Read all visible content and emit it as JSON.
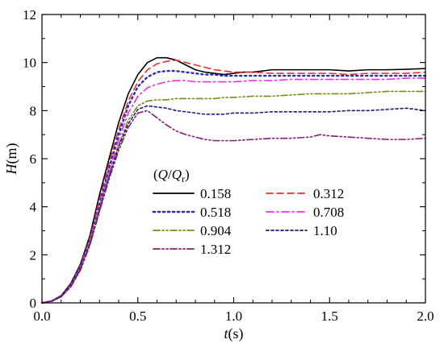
{
  "chart_data": {
    "type": "line",
    "xlabel": {
      "main": "t",
      "unit": "(s)"
    },
    "ylabel": {
      "main": "H",
      "unit": "(m)"
    },
    "xlim": [
      0,
      2.0
    ],
    "ylim": [
      0,
      12
    ],
    "x_ticks": [
      0.0,
      0.5,
      1.0,
      1.5,
      2.0
    ],
    "x_tick_labels": [
      "0.0",
      "0.5",
      "1.0",
      "1.5",
      "2.0"
    ],
    "y_ticks": [
      0,
      2,
      4,
      6,
      8,
      10,
      12
    ],
    "y_tick_labels": [
      "0",
      "2",
      "4",
      "6",
      "8",
      "10",
      "12"
    ],
    "grid": false,
    "legend": {
      "title_parts": [
        "(",
        "Q",
        "/",
        "Q",
        "r",
        ")"
      ],
      "position": "center-left"
    },
    "series": [
      {
        "name": "0.158",
        "color": "#000000",
        "dash": "solid",
        "points": [
          [
            0,
            0
          ],
          [
            0.05,
            0.08
          ],
          [
            0.1,
            0.3
          ],
          [
            0.15,
            0.8
          ],
          [
            0.2,
            1.6
          ],
          [
            0.25,
            2.8
          ],
          [
            0.3,
            4.5
          ],
          [
            0.35,
            6.0
          ],
          [
            0.4,
            7.5
          ],
          [
            0.45,
            8.7
          ],
          [
            0.5,
            9.5
          ],
          [
            0.55,
            10.0
          ],
          [
            0.6,
            10.2
          ],
          [
            0.65,
            10.2
          ],
          [
            0.7,
            10.1
          ],
          [
            0.75,
            9.9
          ],
          [
            0.8,
            9.7
          ],
          [
            0.85,
            9.6
          ],
          [
            0.9,
            9.55
          ],
          [
            0.95,
            9.5
          ],
          [
            1.0,
            9.55
          ],
          [
            1.05,
            9.6
          ],
          [
            1.1,
            9.6
          ],
          [
            1.2,
            9.7
          ],
          [
            1.3,
            9.7
          ],
          [
            1.4,
            9.7
          ],
          [
            1.5,
            9.7
          ],
          [
            1.6,
            9.65
          ],
          [
            1.7,
            9.7
          ],
          [
            1.8,
            9.7
          ],
          [
            1.9,
            9.72
          ],
          [
            2.0,
            9.75
          ]
        ]
      },
      {
        "name": "0.312",
        "color": "#e83030",
        "dash": "dashed",
        "points": [
          [
            0,
            0
          ],
          [
            0.05,
            0.07
          ],
          [
            0.1,
            0.28
          ],
          [
            0.15,
            0.75
          ],
          [
            0.2,
            1.55
          ],
          [
            0.25,
            2.7
          ],
          [
            0.3,
            4.3
          ],
          [
            0.35,
            5.8
          ],
          [
            0.4,
            7.2
          ],
          [
            0.45,
            8.4
          ],
          [
            0.5,
            9.2
          ],
          [
            0.55,
            9.7
          ],
          [
            0.6,
            9.95
          ],
          [
            0.65,
            10.05
          ],
          [
            0.7,
            10.1
          ],
          [
            0.75,
            10.0
          ],
          [
            0.8,
            9.9
          ],
          [
            0.85,
            9.8
          ],
          [
            0.9,
            9.7
          ],
          [
            0.95,
            9.65
          ],
          [
            1.0,
            9.6
          ],
          [
            1.1,
            9.6
          ],
          [
            1.2,
            9.55
          ],
          [
            1.3,
            9.55
          ],
          [
            1.4,
            9.55
          ],
          [
            1.5,
            9.55
          ],
          [
            1.6,
            9.5
          ],
          [
            1.7,
            9.55
          ],
          [
            1.8,
            9.55
          ],
          [
            1.9,
            9.55
          ],
          [
            2.0,
            9.6
          ]
        ]
      },
      {
        "name": "0.518",
        "color": "#2828c8",
        "dash": "dotted",
        "points": [
          [
            0,
            0
          ],
          [
            0.05,
            0.07
          ],
          [
            0.1,
            0.27
          ],
          [
            0.15,
            0.72
          ],
          [
            0.2,
            1.5
          ],
          [
            0.25,
            2.6
          ],
          [
            0.3,
            4.1
          ],
          [
            0.35,
            5.6
          ],
          [
            0.4,
            7.0
          ],
          [
            0.45,
            8.2
          ],
          [
            0.5,
            9.0
          ],
          [
            0.55,
            9.4
          ],
          [
            0.6,
            9.6
          ],
          [
            0.65,
            9.65
          ],
          [
            0.7,
            9.65
          ],
          [
            0.75,
            9.6
          ],
          [
            0.8,
            9.55
          ],
          [
            0.85,
            9.5
          ],
          [
            0.9,
            9.5
          ],
          [
            0.95,
            9.45
          ],
          [
            1.0,
            9.45
          ],
          [
            1.1,
            9.45
          ],
          [
            1.2,
            9.45
          ],
          [
            1.3,
            9.45
          ],
          [
            1.4,
            9.45
          ],
          [
            1.5,
            9.45
          ],
          [
            1.6,
            9.45
          ],
          [
            1.7,
            9.45
          ],
          [
            1.8,
            9.45
          ],
          [
            1.9,
            9.45
          ],
          [
            2.0,
            9.45
          ]
        ]
      },
      {
        "name": "0.708",
        "color": "#e830e8",
        "dash": "dashdot",
        "points": [
          [
            0,
            0
          ],
          [
            0.05,
            0.07
          ],
          [
            0.1,
            0.26
          ],
          [
            0.15,
            0.7
          ],
          [
            0.2,
            1.45
          ],
          [
            0.25,
            2.55
          ],
          [
            0.3,
            4.0
          ],
          [
            0.35,
            5.45
          ],
          [
            0.4,
            6.8
          ],
          [
            0.45,
            7.9
          ],
          [
            0.5,
            8.6
          ],
          [
            0.55,
            8.95
          ],
          [
            0.6,
            9.1
          ],
          [
            0.65,
            9.2
          ],
          [
            0.7,
            9.25
          ],
          [
            0.75,
            9.25
          ],
          [
            0.8,
            9.2
          ],
          [
            0.85,
            9.2
          ],
          [
            0.9,
            9.2
          ],
          [
            0.95,
            9.2
          ],
          [
            1.0,
            9.2
          ],
          [
            1.1,
            9.25
          ],
          [
            1.2,
            9.25
          ],
          [
            1.3,
            9.3
          ],
          [
            1.4,
            9.3
          ],
          [
            1.5,
            9.3
          ],
          [
            1.6,
            9.3
          ],
          [
            1.7,
            9.3
          ],
          [
            1.8,
            9.3
          ],
          [
            1.9,
            9.35
          ],
          [
            2.0,
            9.35
          ]
        ]
      },
      {
        "name": "0.904",
        "color": "#7a8a18",
        "dash": "dashdotdot",
        "points": [
          [
            0,
            0
          ],
          [
            0.05,
            0.07
          ],
          [
            0.1,
            0.26
          ],
          [
            0.15,
            0.68
          ],
          [
            0.2,
            1.4
          ],
          [
            0.25,
            2.5
          ],
          [
            0.3,
            3.9
          ],
          [
            0.35,
            5.3
          ],
          [
            0.4,
            6.6
          ],
          [
            0.45,
            7.6
          ],
          [
            0.5,
            8.2
          ],
          [
            0.55,
            8.4
          ],
          [
            0.6,
            8.45
          ],
          [
            0.65,
            8.45
          ],
          [
            0.7,
            8.5
          ],
          [
            0.75,
            8.5
          ],
          [
            0.8,
            8.5
          ],
          [
            0.85,
            8.5
          ],
          [
            0.9,
            8.5
          ],
          [
            0.95,
            8.55
          ],
          [
            1.0,
            8.55
          ],
          [
            1.1,
            8.6
          ],
          [
            1.2,
            8.6
          ],
          [
            1.3,
            8.65
          ],
          [
            1.4,
            8.7
          ],
          [
            1.5,
            8.7
          ],
          [
            1.6,
            8.7
          ],
          [
            1.7,
            8.75
          ],
          [
            1.8,
            8.8
          ],
          [
            1.9,
            8.8
          ],
          [
            2.0,
            8.8
          ]
        ]
      },
      {
        "name": "1.10",
        "color": "#1c1c7a",
        "dash": "shortdash",
        "points": [
          [
            0,
            0
          ],
          [
            0.05,
            0.07
          ],
          [
            0.1,
            0.26
          ],
          [
            0.15,
            0.68
          ],
          [
            0.2,
            1.4
          ],
          [
            0.25,
            2.45
          ],
          [
            0.3,
            3.85
          ],
          [
            0.35,
            5.25
          ],
          [
            0.4,
            6.5
          ],
          [
            0.45,
            7.45
          ],
          [
            0.5,
            8.05
          ],
          [
            0.55,
            8.2
          ],
          [
            0.6,
            8.15
          ],
          [
            0.65,
            8.1
          ],
          [
            0.7,
            8.0
          ],
          [
            0.75,
            7.95
          ],
          [
            0.8,
            7.9
          ],
          [
            0.85,
            7.85
          ],
          [
            0.9,
            7.85
          ],
          [
            0.95,
            7.85
          ],
          [
            1.0,
            7.9
          ],
          [
            1.1,
            7.9
          ],
          [
            1.2,
            7.95
          ],
          [
            1.3,
            7.95
          ],
          [
            1.4,
            7.95
          ],
          [
            1.5,
            7.95
          ],
          [
            1.6,
            8.0
          ],
          [
            1.7,
            8.0
          ],
          [
            1.8,
            8.05
          ],
          [
            1.9,
            8.1
          ],
          [
            2.0,
            8.0
          ]
        ]
      },
      {
        "name": "1.312",
        "color": "#8a1c78",
        "dash": "dashdotdot",
        "points": [
          [
            0,
            0
          ],
          [
            0.05,
            0.07
          ],
          [
            0.1,
            0.25
          ],
          [
            0.15,
            0.66
          ],
          [
            0.2,
            1.35
          ],
          [
            0.25,
            2.4
          ],
          [
            0.3,
            3.8
          ],
          [
            0.35,
            5.15
          ],
          [
            0.4,
            6.35
          ],
          [
            0.45,
            7.3
          ],
          [
            0.5,
            7.9
          ],
          [
            0.55,
            8.0
          ],
          [
            0.6,
            7.7
          ],
          [
            0.65,
            7.4
          ],
          [
            0.7,
            7.15
          ],
          [
            0.75,
            7.0
          ],
          [
            0.8,
            6.9
          ],
          [
            0.85,
            6.8
          ],
          [
            0.9,
            6.75
          ],
          [
            0.95,
            6.75
          ],
          [
            1.0,
            6.75
          ],
          [
            1.1,
            6.8
          ],
          [
            1.2,
            6.85
          ],
          [
            1.3,
            6.85
          ],
          [
            1.4,
            6.9
          ],
          [
            1.45,
            7.0
          ],
          [
            1.5,
            6.95
          ],
          [
            1.6,
            6.9
          ],
          [
            1.7,
            6.85
          ],
          [
            1.8,
            6.8
          ],
          [
            1.9,
            6.8
          ],
          [
            2.0,
            6.85
          ]
        ]
      }
    ]
  }
}
